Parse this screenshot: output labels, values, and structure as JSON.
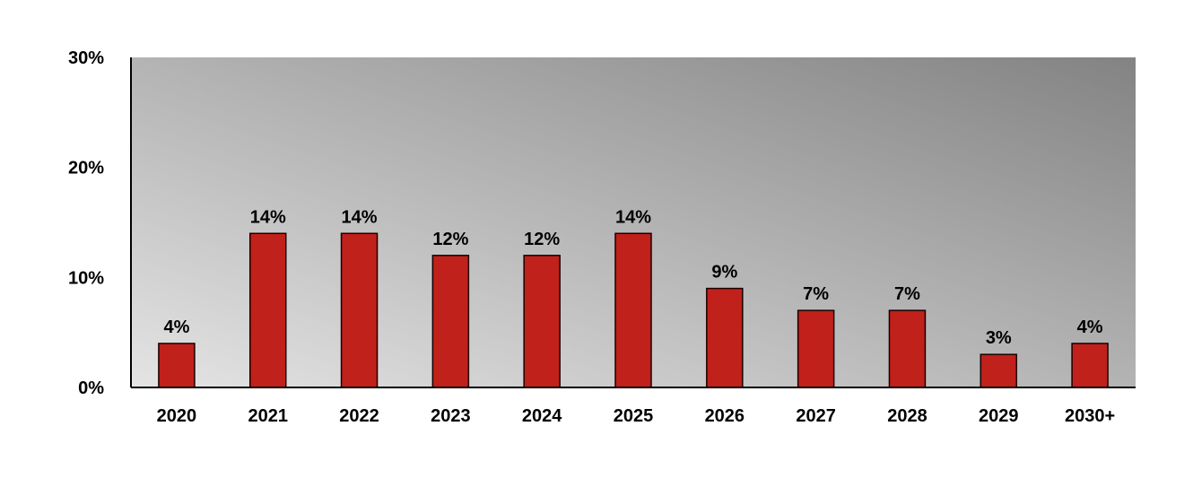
{
  "chart_data": {
    "type": "bar",
    "categories": [
      "2020",
      "2021",
      "2022",
      "2023",
      "2024",
      "2025",
      "2026",
      "2027",
      "2028",
      "2029",
      "2030+"
    ],
    "values": [
      4,
      14,
      14,
      12,
      12,
      14,
      9,
      7,
      7,
      3,
      4
    ],
    "data_labels": [
      "4%",
      "14%",
      "14%",
      "12%",
      "12%",
      "14%",
      "9%",
      "7%",
      "7%",
      "3%",
      "4%"
    ],
    "title": "",
    "xlabel": "",
    "ylabel": "",
    "ylim": [
      0,
      30
    ],
    "yticks": [
      0,
      10,
      20,
      30
    ],
    "ytick_labels": [
      "0%",
      "10%",
      "20%",
      "30%"
    ],
    "grid": false,
    "legend": "none",
    "colors": {
      "bar": "#c0211a",
      "bar_outline": "#1a0000",
      "plot_bg_light": "#e4e4e4",
      "plot_bg_dark": "#838383",
      "axis": "#000000"
    }
  }
}
